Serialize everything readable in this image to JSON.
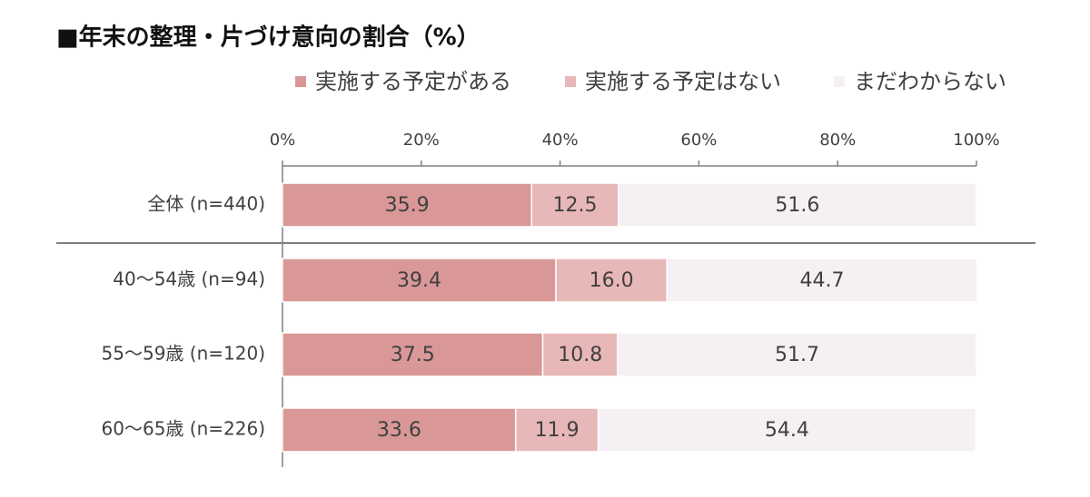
{
  "chart_data": {
    "type": "stacked_barh",
    "title": "■年末の整理・片づけ意向の割合（%）",
    "categories": [
      "全体 (n=440)",
      "40～54歳 (n=94)",
      "55～59歳 (n=120)",
      "60～65歳 (n=226)"
    ],
    "series": [
      {
        "name": "実施する予定がある",
        "color": "#d99897",
        "values": [
          35.9,
          39.4,
          37.5,
          33.6
        ],
        "value_labels": [
          "35.9",
          "39.4",
          "37.5",
          "33.6"
        ]
      },
      {
        "name": "実施する予定はない",
        "color": "#e8b7b7",
        "values": [
          12.5,
          16.0,
          10.8,
          11.9
        ],
        "value_labels": [
          "12.5",
          "16.0",
          "10.8",
          "11.9"
        ]
      },
      {
        "name": "まだわからない",
        "color": "#f4f0f3",
        "values": [
          51.6,
          44.7,
          51.7,
          54.4
        ],
        "value_labels": [
          "51.6",
          "44.7",
          "51.7",
          "54.4"
        ]
      }
    ],
    "xlim": [
      0,
      100
    ],
    "xticks": [
      {
        "value": 0,
        "label": "0%"
      },
      {
        "value": 20,
        "label": "20%"
      },
      {
        "value": 40,
        "label": "40%"
      },
      {
        "value": 60,
        "label": "60%"
      },
      {
        "value": 80,
        "label": "80%"
      },
      {
        "value": 100,
        "label": "100%"
      }
    ],
    "legend": "top"
  }
}
